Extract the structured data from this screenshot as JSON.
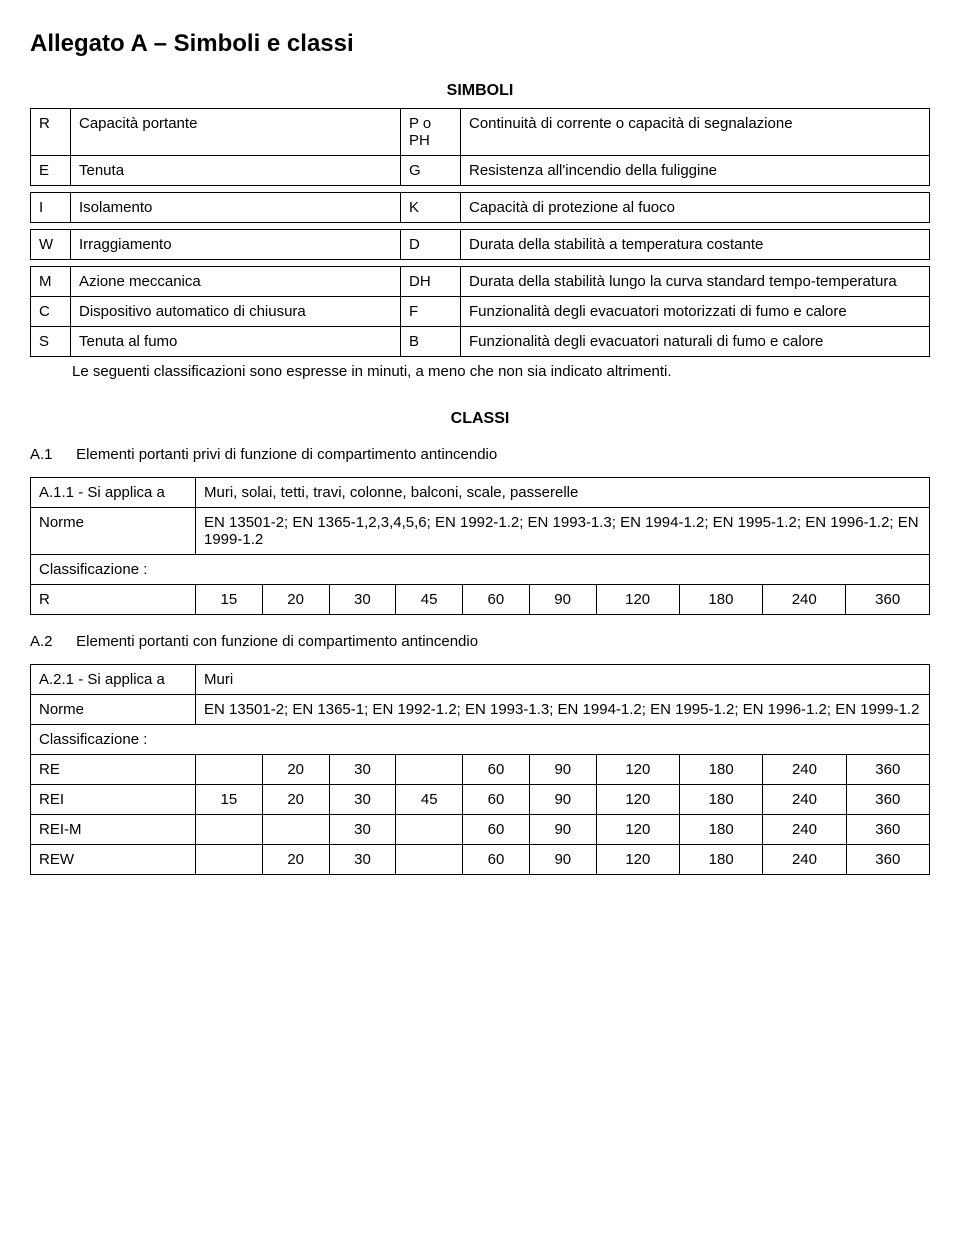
{
  "title": "Allegato A – Simboli e classi",
  "headings": {
    "simboli": "SIMBOLI",
    "classi": "CLASSI"
  },
  "simboli_rows": [
    {
      "s1": "R",
      "d1": "Capacità portante",
      "s2": "P o PH",
      "d2": "Continuità di corrente o capacità di segnalazione"
    },
    {
      "s1": "E",
      "d1": "Tenuta",
      "s2": "G",
      "d2": "Resistenza all'incendio della fuliggine"
    },
    {
      "s1": "I",
      "d1": "Isolamento",
      "s2": "K",
      "d2": "Capacità di protezione al fuoco"
    },
    {
      "s1": "W",
      "d1": "Irraggiamento",
      "s2": "D",
      "d2": "Durata della stabilità a temperatura costante"
    },
    {
      "s1": "M",
      "d1": "Azione meccanica",
      "s2": "DH",
      "d2": "Durata della stabilità lungo la curva standard tempo-temperatura"
    },
    {
      "s1": "C",
      "d1": "Dispositivo automatico di chiusura",
      "s2": "F",
      "d2": "Funzionalità degli evacuatori motorizzati di fumo e calore"
    },
    {
      "s1": "S",
      "d1": "Tenuta al fumo",
      "s2": "B",
      "d2": "Funzionalità degli evacuatori naturali di fumo e calore"
    }
  ],
  "simboli_note": "Le seguenti classificazioni sono espresse in minuti, a meno che non sia indicato altrimenti.",
  "sectionA1": {
    "num": "A.1",
    "title": "Elementi portanti privi di funzione di compartimento antincendio",
    "applica_label": "A.1.1 - Si applica a",
    "applica": "Muri, solai, tetti, travi, colonne, balconi, scale, passerelle",
    "norme_label": "Norme",
    "norme": "EN 13501-2; EN 1365-1,2,3,4,5,6; EN 1992-1.2; EN 1993-1.3; EN 1994-1.2; EN 1995-1.2; EN 1996-1.2; EN 1999-1.2",
    "class_label": "Classificazione :",
    "rows": [
      {
        "label": "R",
        "v": [
          "15",
          "20",
          "30",
          "45",
          "60",
          "90",
          "120",
          "180",
          "240",
          "360"
        ]
      }
    ]
  },
  "sectionA2": {
    "num": "A.2",
    "title": "Elementi portanti con funzione di compartimento antincendio",
    "applica_label": "A.2.1 - Si applica a",
    "applica": "Muri",
    "norme_label": "Norme",
    "norme": "EN 13501-2; EN 1365-1; EN 1992-1.2; EN 1993-1.3; EN 1994-1.2; EN 1995-1.2; EN 1996-1.2; EN 1999-1.2",
    "class_label": "Classificazione :",
    "rows": [
      {
        "label": "RE",
        "v": [
          "",
          "20",
          "30",
          "",
          "60",
          "90",
          "120",
          "180",
          "240",
          "360"
        ]
      },
      {
        "label": "REI",
        "v": [
          "15",
          "20",
          "30",
          "45",
          "60",
          "90",
          "120",
          "180",
          "240",
          "360"
        ]
      },
      {
        "label": "REI-M",
        "v": [
          "",
          "",
          "30",
          "",
          "60",
          "90",
          "120",
          "180",
          "240",
          "360"
        ]
      },
      {
        "label": "REW",
        "v": [
          "",
          "20",
          "30",
          "",
          "60",
          "90",
          "120",
          "180",
          "240",
          "360"
        ]
      }
    ]
  }
}
